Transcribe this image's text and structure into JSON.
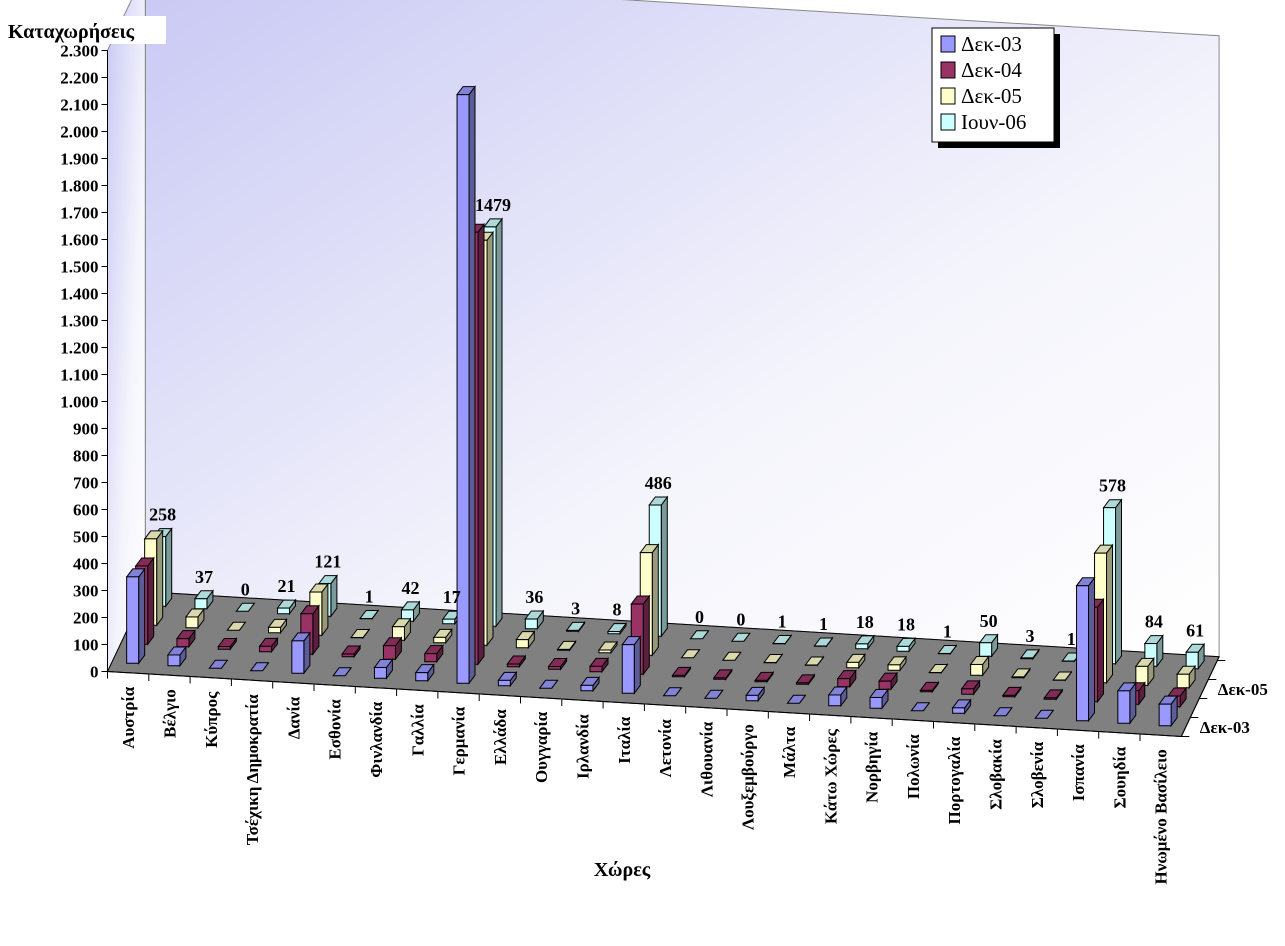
{
  "chart_data": {
    "type": "bar3d",
    "y_label": "Καταχωρήσεις",
    "x_label": "Χώρες",
    "categories": [
      "Αυστρία",
      "Βέλγιο",
      "Κύπρος",
      "Τσέχικη Δημοκρατία",
      "Δανία",
      "Εσθονία",
      "Φινλανδία",
      "Γαλλία",
      "Γερμανία",
      "Ελλάδα",
      "Ουγγαρία",
      "Ιρλανδία",
      "Ιταλία",
      "Λετονία",
      "Λιθουανία",
      "Λουξεμβούργο",
      "Μάλτα",
      "Κάτω Χώρες",
      "Νορβηγία",
      "Πολωνία",
      "Πορτογαλία",
      "Σλοβακία",
      "Σλοβενία",
      "Ισπανία",
      "Σουηδία",
      "Ηνωμένο Βασίλειο"
    ],
    "series": [
      {
        "name": "Δεκ-03",
        "color": "#9999ff",
        "values": [
          320,
          40,
          0,
          0,
          120,
          0,
          40,
          30,
          2180,
          20,
          0,
          20,
          180,
          0,
          0,
          20,
          0,
          40,
          40,
          0,
          20,
          0,
          0,
          500,
          120,
          80
        ]
      },
      {
        "name": "Δεκ-04",
        "color": "#993366",
        "values": [
          290,
          30,
          10,
          20,
          150,
          10,
          50,
          30,
          1600,
          10,
          10,
          20,
          260,
          5,
          5,
          5,
          5,
          30,
          30,
          5,
          20,
          5,
          5,
          350,
          50,
          40
        ]
      },
      {
        "name": "Δεκ-05",
        "color": "#ffffcc",
        "values": [
          320,
          40,
          0,
          20,
          160,
          1,
          50,
          20,
          1500,
          30,
          3,
          10,
          380,
          0,
          0,
          1,
          1,
          20,
          20,
          1,
          40,
          3,
          1,
          480,
          70,
          50
        ]
      },
      {
        "name": "Ιουν-06",
        "color": "#ccffff",
        "values": [
          258,
          37,
          0,
          21,
          121,
          1,
          42,
          17,
          1479,
          36,
          3,
          8,
          486,
          0,
          0,
          1,
          1,
          18,
          18,
          1,
          50,
          3,
          1,
          578,
          84,
          61
        ],
        "labels": true
      }
    ],
    "ylim": [
      0,
      2300
    ],
    "yticks": [
      0,
      100,
      200,
      300,
      400,
      500,
      600,
      700,
      800,
      900,
      {
        "value": 1000,
        "label": "1.000"
      },
      {
        "value": 1100,
        "label": "1.100"
      },
      {
        "value": 1200,
        "label": "1.200"
      },
      {
        "value": 1300,
        "label": "1.300"
      },
      {
        "value": 1400,
        "label": "1.400"
      },
      {
        "value": 1500,
        "label": "1.500"
      },
      {
        "value": 1600,
        "label": "1.600"
      },
      {
        "value": 1700,
        "label": "1.700"
      },
      {
        "value": 1800,
        "label": "1.800"
      },
      {
        "value": 1900,
        "label": "1.900"
      },
      {
        "value": 2000,
        "label": "2.000"
      },
      {
        "value": 2100,
        "label": "2.100"
      },
      {
        "value": 2200,
        "label": "2.200"
      },
      {
        "value": 2300,
        "label": "2.300"
      }
    ],
    "depth_labels": [
      2,
      0
    ],
    "legend": "top-right"
  }
}
